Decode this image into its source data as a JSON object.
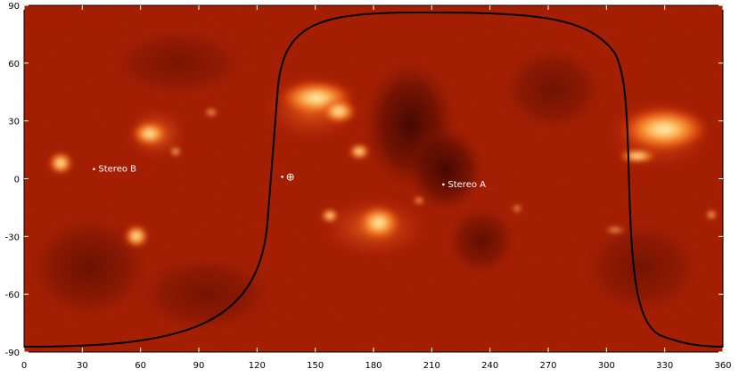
{
  "figure": {
    "x_ticks": [
      "0",
      "30",
      "60",
      "90",
      "120",
      "150",
      "180",
      "210",
      "240",
      "270",
      "300",
      "330",
      "360"
    ],
    "y_ticks": [
      "90",
      "60",
      "30",
      "0",
      "-30",
      "-60",
      "-90"
    ],
    "markers": {
      "stereo_b": {
        "label": "Stereo B",
        "lon": 36,
        "lat": 5
      },
      "earth": {
        "symbol": "⊕",
        "lon": 133,
        "lat": 1
      },
      "stereo_a": {
        "label": "Stereo A",
        "lon": 216,
        "lat": -3
      }
    },
    "colors": {
      "background": "#b81e05",
      "dark": "#5a0a00",
      "bright": "#ffd070",
      "boundary": "#000000"
    }
  }
}
